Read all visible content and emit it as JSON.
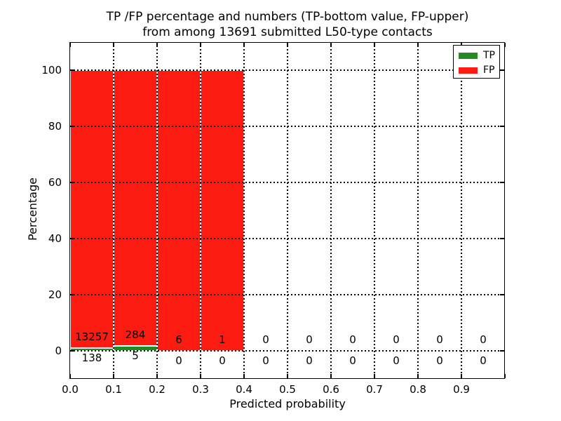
{
  "title": {
    "line1": "TP /FP percentage and numbers (TP-bottom value, FP-upper)",
    "line2": "from among 13691 submitted L50-type contacts"
  },
  "chart_data": {
    "type": "bar",
    "stacked": true,
    "unit": "percent",
    "title": "TP /FP percentage and numbers (TP-bottom value, FP-upper) from among 13691 submitted L50-type contacts",
    "xlabel": "Predicted probability",
    "ylabel": "Percentage",
    "total_contacts": 13691,
    "xlim": [
      0.0,
      1.0
    ],
    "ylim": [
      -10,
      110
    ],
    "bin_width": 0.1,
    "categories": [
      "0.0",
      "0.1",
      "0.2",
      "0.3",
      "0.4",
      "0.5",
      "0.6",
      "0.7",
      "0.8",
      "0.9"
    ],
    "series": [
      {
        "name": "TP",
        "color": "#228b22",
        "counts": [
          138,
          5,
          0,
          0,
          0,
          0,
          0,
          0,
          0,
          0
        ]
      },
      {
        "name": "FP",
        "color": "#fb1b10",
        "counts": [
          13257,
          284,
          6,
          1,
          0,
          0,
          0,
          0,
          0,
          0
        ]
      }
    ],
    "bar_percentages": {
      "TP": [
        1.03,
        1.73,
        0,
        0,
        0,
        0,
        0,
        0,
        0,
        0
      ],
      "FP": [
        98.97,
        98.27,
        100,
        100,
        0,
        0,
        0,
        0,
        0,
        0
      ]
    },
    "yticks": [
      "0",
      "20",
      "40",
      "60",
      "80",
      "100"
    ],
    "ytick_values": [
      0,
      20,
      40,
      60,
      80,
      100
    ],
    "xticks": [
      "0.0",
      "0.1",
      "0.2",
      "0.3",
      "0.4",
      "0.5",
      "0.6",
      "0.7",
      "0.8",
      "0.9"
    ],
    "grid": "dotted",
    "grid_color": "#000000",
    "background": "#ffffff",
    "legend": {
      "position": "upper right",
      "entries": [
        {
          "label": "TP",
          "color": "#228b22"
        },
        {
          "label": "FP",
          "color": "#fb1b10"
        }
      ]
    }
  }
}
